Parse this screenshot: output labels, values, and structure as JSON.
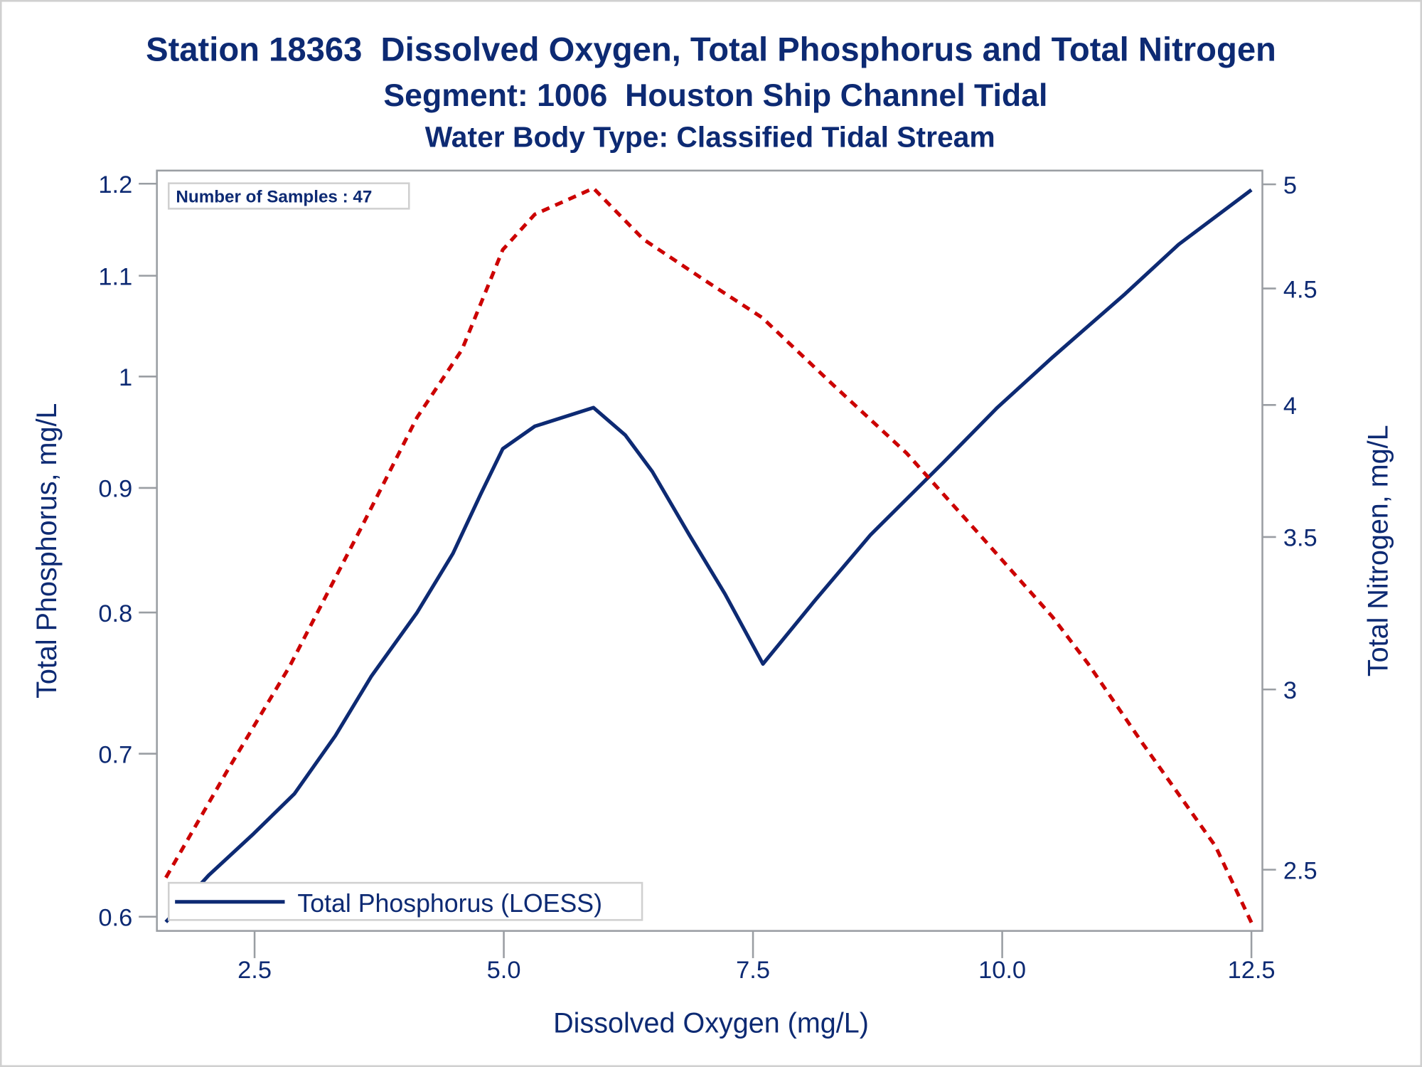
{
  "chart_data": {
    "type": "line",
    "title": "Station 18363  Dissolved Oxygen, Total Phosphorus and Total Nitrogen",
    "subtitle": "Segment: 1006  Houston Ship Channel Tidal",
    "subtitle2": "Water Body Type: Classified Tidal Stream",
    "xlabel": "Dissolved Oxygen (mg/L)",
    "ylabel": "Total Phosphorus, mg/L",
    "y2label": "Total Nitrogen, mg/L",
    "annotation": "Number of Samples : 47",
    "xlim": [
      1.52,
      12.61
    ],
    "ylim": [
      0.592,
      1.215
    ],
    "y2lim": [
      2.35,
      5.07
    ],
    "yscale": "log",
    "y2scale": "log",
    "xticks": [
      "2.5",
      "5.0",
      "7.5",
      "10.0",
      "12.5"
    ],
    "yticks": [
      "0.6",
      "0.7",
      "0.8",
      "0.9",
      "1",
      "1.1",
      "1.2"
    ],
    "y2ticks": [
      "2.5",
      "3",
      "3.5",
      "4",
      "4.5",
      "5"
    ],
    "grid": false,
    "legend": {
      "placement": "bottom-left",
      "entries": [
        "Total Phosphorus (LOESS)"
      ]
    },
    "series": [
      {
        "name": "Total Phosphorus (LOESS)",
        "axis": "left",
        "color": "#0d2a73",
        "style": "solid",
        "x": [
          1.61,
          2.04,
          2.49,
          2.9,
          3.31,
          3.67,
          4.13,
          4.49,
          4.77,
          4.99,
          5.31,
          5.9,
          6.22,
          6.49,
          6.86,
          7.22,
          7.6,
          8.13,
          8.68,
          9.41,
          9.95,
          10.5,
          11.23,
          11.77,
          12.5
        ],
        "y": [
          0.597,
          0.624,
          0.649,
          0.674,
          0.712,
          0.753,
          0.8,
          0.846,
          0.895,
          0.934,
          0.954,
          0.971,
          0.946,
          0.914,
          0.861,
          0.814,
          0.762,
          0.81,
          0.861,
          0.922,
          0.971,
          1.018,
          1.081,
          1.133,
          1.193
        ]
      },
      {
        "axis": "right",
        "color": "#cc0000",
        "style": "dashed",
        "x": [
          1.61,
          2.22,
          2.85,
          3.58,
          4.13,
          4.58,
          4.99,
          5.31,
          5.9,
          6.4,
          7.04,
          7.59,
          8.31,
          9.04,
          9.77,
          10.5,
          10.86,
          11.41,
          12.14,
          12.5
        ],
        "y": [
          2.48,
          2.76,
          3.07,
          3.54,
          3.95,
          4.23,
          4.68,
          4.85,
          4.98,
          4.73,
          4.53,
          4.37,
          4.08,
          3.81,
          3.51,
          3.23,
          3.08,
          2.84,
          2.56,
          2.37
        ]
      }
    ]
  }
}
